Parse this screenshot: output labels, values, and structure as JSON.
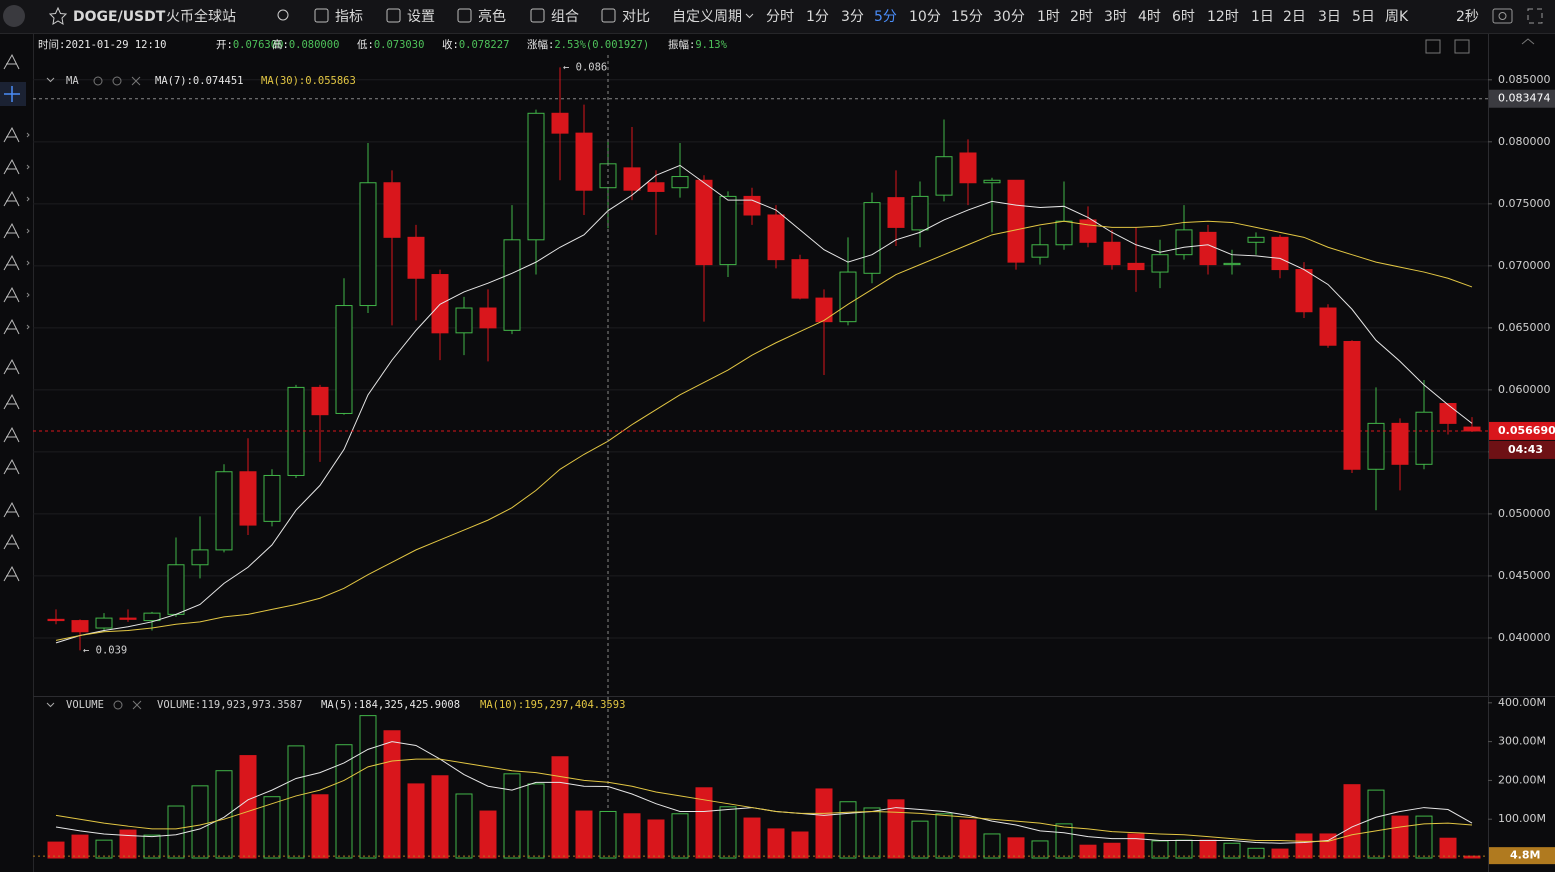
{
  "toolbar": {
    "symbol": "DOGE/USDT",
    "exchange": "火币全球站",
    "tools": [
      "指标",
      "设置",
      "亮色",
      "组合",
      "对比"
    ],
    "custom_period": "自定义周期",
    "periods": [
      "分时",
      "1分",
      "3分",
      "5分",
      "10分",
      "15分",
      "30分",
      "1时",
      "2时",
      "3时",
      "4时",
      "6时",
      "12时",
      "1日",
      "2日",
      "3日",
      "5日",
      "周K"
    ],
    "active_period": "5分",
    "refresh": "2秒"
  },
  "info": [
    {
      "label": "时间:",
      "value": "2021-01-29 12:10"
    },
    {
      "label": "开:",
      "value": "0.076300"
    },
    {
      "label": "高:",
      "value": "0.080000"
    },
    {
      "label": "低:",
      "value": "0.073030"
    },
    {
      "label": "收:",
      "value": "0.078227"
    },
    {
      "label": "涨幅:",
      "value": "2.53%(0.001927)"
    },
    {
      "label": "振幅:",
      "value": "9.13%"
    }
  ],
  "chart_data": [
    {
      "type": "candlestick",
      "indicator": "MA",
      "up_color": "#42b649",
      "down_color": "#d9161c",
      "open": [
        0.0415,
        0.0414,
        0.0408,
        0.0416,
        0.0414,
        0.0419,
        0.0459,
        0.0471,
        0.0534,
        0.0494,
        0.0531,
        0.0602,
        0.0581,
        0.0668,
        0.0767,
        0.0723,
        0.0693,
        0.0646,
        0.0666,
        0.0648,
        0.0721,
        0.0823,
        0.0807,
        0.0763,
        0.0779,
        0.0767,
        0.0763,
        0.0769,
        0.0701,
        0.0756,
        0.0741,
        0.0705,
        0.0674,
        0.0655,
        0.0694,
        0.0755,
        0.0729,
        0.0757,
        0.0791,
        0.0767,
        0.0769,
        0.0707,
        0.0717,
        0.0737,
        0.0719,
        0.0702,
        0.0695,
        0.0709,
        0.0727,
        0.0701,
        0.0719,
        0.0723,
        0.0697,
        0.0666,
        0.0639,
        0.0536,
        0.0573,
        0.054,
        0.0589,
        0.057
      ],
      "high": [
        0.0423,
        0.0415,
        0.042,
        0.0423,
        0.0421,
        0.0481,
        0.0498,
        0.054,
        0.0561,
        0.0536,
        0.0604,
        0.0604,
        0.069,
        0.0799,
        0.0777,
        0.0733,
        0.0697,
        0.0675,
        0.0681,
        0.0749,
        0.0826,
        0.086,
        0.083,
        0.08,
        0.0812,
        0.0777,
        0.0799,
        0.0773,
        0.076,
        0.0763,
        0.0749,
        0.0709,
        0.0681,
        0.0723,
        0.0759,
        0.0777,
        0.0768,
        0.0818,
        0.0802,
        0.0771,
        0.0769,
        0.0731,
        0.0768,
        0.0748,
        0.0729,
        0.0731,
        0.0721,
        0.0749,
        0.0733,
        0.0713,
        0.0727,
        0.0725,
        0.0703,
        0.0669,
        0.064,
        0.0602,
        0.0577,
        0.0608,
        0.0589,
        0.0578
      ],
      "low": [
        0.0411,
        0.039,
        0.0405,
        0.0413,
        0.0406,
        0.0417,
        0.0448,
        0.0469,
        0.0483,
        0.049,
        0.0529,
        0.0542,
        0.058,
        0.0662,
        0.0652,
        0.0656,
        0.0624,
        0.0628,
        0.0623,
        0.0645,
        0.0693,
        0.0769,
        0.0741,
        0.07303,
        0.0753,
        0.0725,
        0.0755,
        0.0655,
        0.0691,
        0.0733,
        0.0698,
        0.0673,
        0.0612,
        0.0652,
        0.0686,
        0.0716,
        0.0715,
        0.0752,
        0.0749,
        0.0727,
        0.0697,
        0.0701,
        0.0713,
        0.0715,
        0.0697,
        0.0679,
        0.0682,
        0.0705,
        0.0693,
        0.0693,
        0.0709,
        0.069,
        0.0658,
        0.0634,
        0.0533,
        0.0503,
        0.0519,
        0.0536,
        0.0564,
        0.0566
      ],
      "close": [
        0.0414,
        0.0405,
        0.0416,
        0.0415,
        0.042,
        0.0459,
        0.0471,
        0.0534,
        0.0491,
        0.0531,
        0.0602,
        0.058,
        0.0668,
        0.0767,
        0.0723,
        0.069,
        0.0646,
        0.0666,
        0.065,
        0.0721,
        0.0823,
        0.0807,
        0.0761,
        0.078227,
        0.0761,
        0.076,
        0.0772,
        0.0701,
        0.0756,
        0.0741,
        0.0705,
        0.0674,
        0.0655,
        0.0695,
        0.0751,
        0.0731,
        0.0756,
        0.0788,
        0.0767,
        0.0769,
        0.0703,
        0.0717,
        0.0736,
        0.0719,
        0.0701,
        0.0697,
        0.0709,
        0.0729,
        0.0701,
        0.0702,
        0.0723,
        0.0697,
        0.0663,
        0.0636,
        0.0536,
        0.0573,
        0.054,
        0.0582,
        0.0573,
        0.05669
      ],
      "series": [
        {
          "legend": "MA(7):0.074451",
          "color": "#e6e6e6",
          "values": [
            0.0396,
            0.0402,
            0.0406,
            0.0409,
            0.0413,
            0.0419,
            0.0427,
            0.0444,
            0.0457,
            0.0475,
            0.0503,
            0.0523,
            0.0552,
            0.0596,
            0.0624,
            0.0648,
            0.0669,
            0.0679,
            0.0686,
            0.0694,
            0.0703,
            0.0715,
            0.0725,
            0.074451,
            0.0757,
            0.0773,
            0.0781,
            0.0767,
            0.0753,
            0.0753,
            0.0745,
            0.0729,
            0.0713,
            0.0703,
            0.0709,
            0.0721,
            0.0727,
            0.0737,
            0.0745,
            0.0752,
            0.0749,
            0.0747,
            0.0748,
            0.0739,
            0.0727,
            0.0717,
            0.0711,
            0.0715,
            0.0717,
            0.0709,
            0.0708,
            0.0706,
            0.0697,
            0.0685,
            0.0665,
            0.064,
            0.0623,
            0.0604,
            0.0588,
            0.0573
          ]
        },
        {
          "legend": "MA(30):0.055863",
          "color": "#e2c643",
          "values": [
            0.0398,
            0.0402,
            0.0405,
            0.0406,
            0.0408,
            0.0411,
            0.0413,
            0.0417,
            0.0419,
            0.0423,
            0.0427,
            0.0432,
            0.044,
            0.0451,
            0.0461,
            0.0471,
            0.0479,
            0.0487,
            0.0495,
            0.0505,
            0.0519,
            0.0536,
            0.0548,
            0.055863,
            0.0572,
            0.0584,
            0.0596,
            0.0606,
            0.0616,
            0.0628,
            0.0638,
            0.0647,
            0.0656,
            0.0669,
            0.0681,
            0.0693,
            0.0701,
            0.0709,
            0.0717,
            0.0725,
            0.0729,
            0.0733,
            0.0736,
            0.0733,
            0.0731,
            0.0731,
            0.0732,
            0.0735,
            0.0736,
            0.0735,
            0.0731,
            0.0727,
            0.0723,
            0.0715,
            0.0709,
            0.0703,
            0.0699,
            0.0695,
            0.069,
            0.0683
          ]
        }
      ],
      "ylim": [
        0.0354,
        0.087
      ],
      "yticks": [
        {
          "value": 0.085,
          "label": "0.085000"
        },
        {
          "value": 0.08,
          "label": "0.080000"
        },
        {
          "value": 0.075,
          "label": "0.075000"
        },
        {
          "value": 0.07,
          "label": "0.070000"
        },
        {
          "value": 0.065,
          "label": "0.065000"
        },
        {
          "value": 0.06,
          "label": "0.060000"
        },
        {
          "value": 0.055,
          "label": "0.055000"
        },
        {
          "value": 0.05,
          "label": "0.050000"
        },
        {
          "value": 0.045,
          "label": "0.045000"
        },
        {
          "value": 0.04,
          "label": "0.040000"
        }
      ],
      "grid": true,
      "crosshair_price": {
        "value": 0.083474,
        "label": "0.083474"
      },
      "last_price": {
        "value": 0.05669,
        "label": "0.056690"
      },
      "countdown": "04:43",
      "annotations": [
        {
          "value": 0.086,
          "label": "← 0.086"
        },
        {
          "value": 0.039,
          "label": "← 0.039"
        }
      ]
    },
    {
      "type": "bar",
      "indicator": "VOLUME",
      "volume_label": "VOLUME:119,923,973.3587",
      "values": [
        41,
        59,
        46,
        72,
        59,
        134,
        186,
        225,
        264,
        158,
        289,
        163,
        292,
        367,
        328,
        191,
        212,
        165,
        121,
        217,
        191,
        261,
        121,
        119.92,
        114,
        98,
        114,
        181,
        132,
        103,
        75,
        67,
        178,
        145,
        129,
        150,
        95,
        114,
        98,
        62,
        52,
        44,
        88,
        33,
        38,
        62,
        44,
        46,
        46,
        38,
        25,
        23,
        62,
        62,
        189,
        175,
        108,
        108,
        51,
        4.8
      ],
      "series": [
        {
          "legend": "MA(5):184,325,425.9008",
          "color": "#e6e6e6",
          "values": [
            80,
            70,
            62,
            58,
            55,
            60,
            75,
            105,
            150,
            175,
            205,
            220,
            245,
            280,
            300,
            290,
            255,
            215,
            185,
            175,
            195,
            195,
            185,
            184.33,
            165,
            140,
            120,
            120,
            125,
            130,
            120,
            115,
            110,
            115,
            120,
            130,
            125,
            120,
            110,
            95,
            85,
            70,
            65,
            55,
            50,
            50,
            45,
            45,
            45,
            45,
            40,
            38,
            40,
            45,
            80,
            105,
            120,
            130,
            125,
            90
          ]
        },
        {
          "legend": "MA(10):195,297,404.3593",
          "color": "#e2c643",
          "values": [
            110,
            100,
            90,
            82,
            75,
            75,
            85,
            100,
            120,
            140,
            160,
            175,
            200,
            235,
            250,
            255,
            255,
            245,
            235,
            225,
            220,
            210,
            200,
            195.3,
            185,
            170,
            160,
            150,
            140,
            130,
            120,
            115,
            115,
            118,
            120,
            118,
            115,
            110,
            105,
            100,
            95,
            90,
            80,
            75,
            68,
            65,
            62,
            60,
            55,
            50,
            45,
            45,
            43,
            43,
            60,
            70,
            80,
            88,
            90,
            85
          ]
        }
      ],
      "ylim": [
        0,
        415
      ],
      "yticks": [
        {
          "value": 400,
          "label": "400.00M"
        },
        {
          "value": 300,
          "label": "300.00M"
        },
        {
          "value": 200,
          "label": "200.00M"
        },
        {
          "value": 100,
          "label": "100.00M"
        }
      ],
      "last_value": {
        "value": 4.8,
        "label": "4.8M"
      }
    }
  ]
}
